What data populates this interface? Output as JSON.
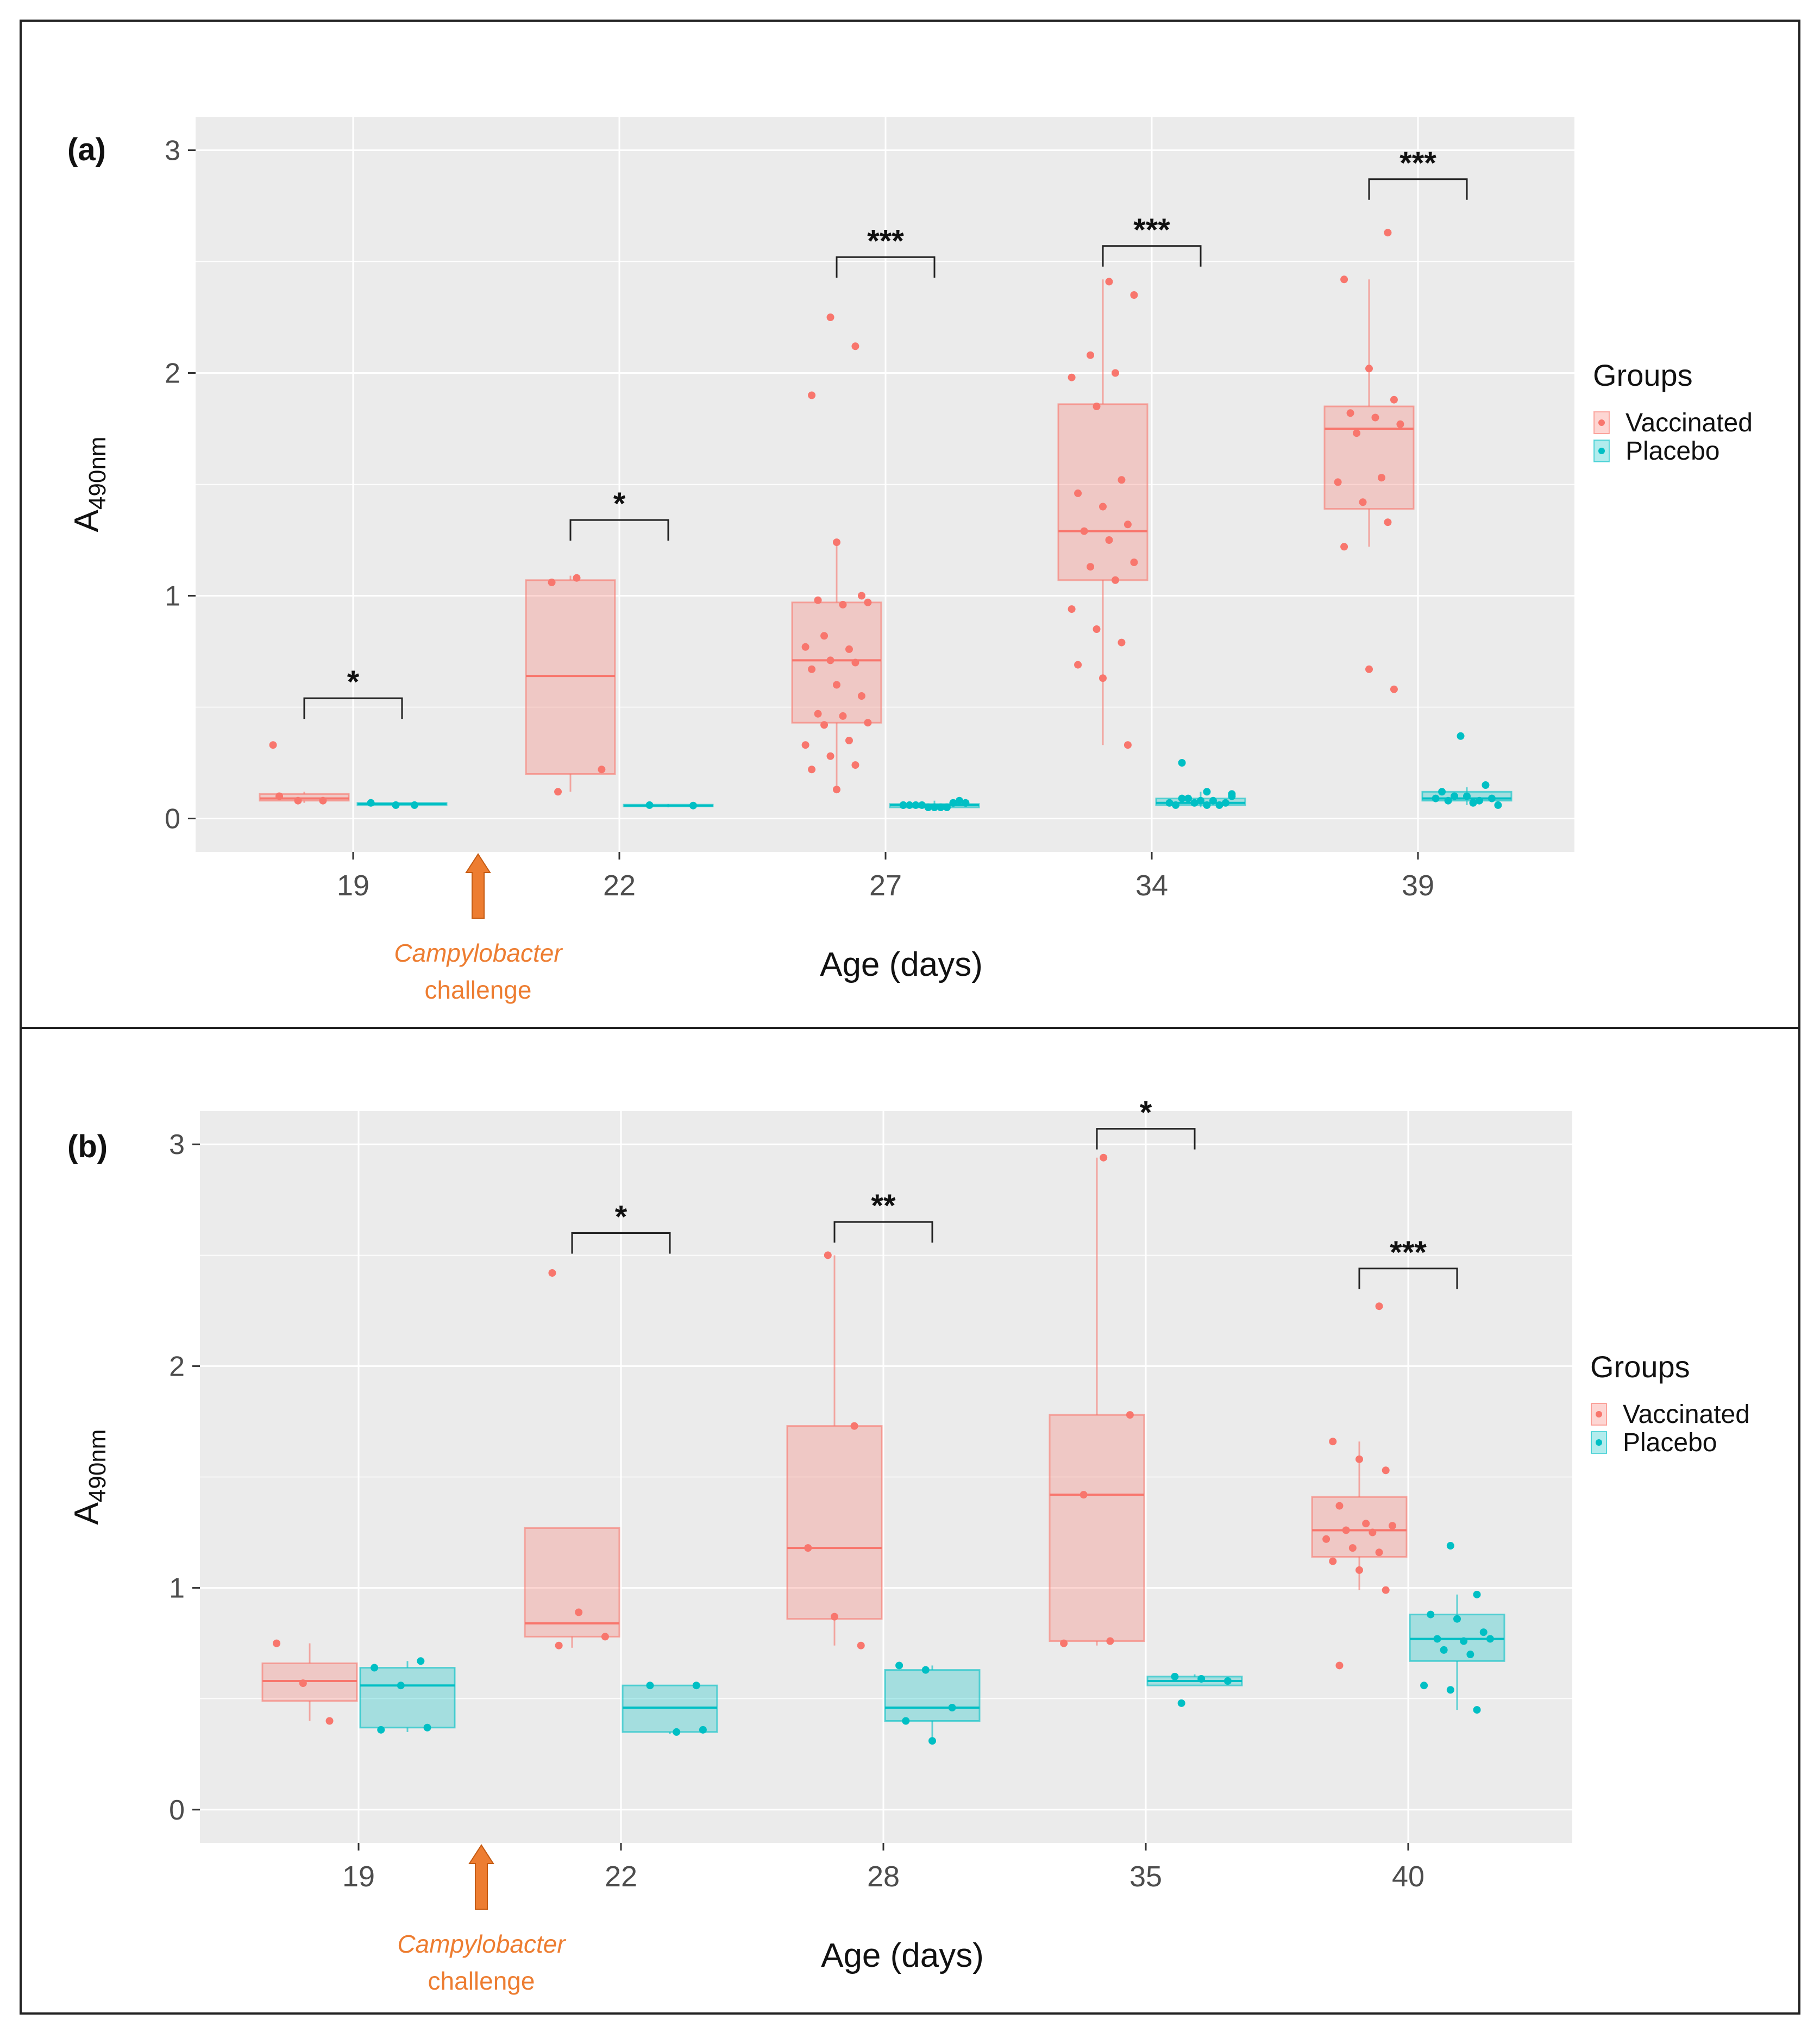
{
  "chart_data": [
    {
      "type": "boxplot",
      "panel_label": "(a)",
      "xlabel": "Age (days)",
      "ylabel_main": "A",
      "ylabel_sub": "490nm",
      "ylim": [
        -0.15,
        3.15
      ],
      "yticks": [
        0,
        1,
        2,
        3
      ],
      "categories": [
        "19",
        "22",
        "27",
        "34",
        "39"
      ],
      "legend": {
        "title": "Groups",
        "entries": [
          "Vaccinated",
          "Placebo"
        ],
        "position": "right"
      },
      "annotation": {
        "line1": "Campylobacter",
        "line2": "challenge",
        "between": [
          "19",
          "22"
        ]
      },
      "series": [
        {
          "name": "Vaccinated",
          "color": "#F8766D",
          "boxes": [
            {
              "category": "19",
              "q1": 0.08,
              "median": 0.09,
              "q3": 0.11,
              "whisker_low": 0.07,
              "whisker_high": 0.12,
              "points": [
                0.33,
                0.08,
                0.08,
                0.1
              ]
            },
            {
              "category": "22",
              "q1": 0.2,
              "median": 0.64,
              "q3": 1.07,
              "whisker_low": 0.12,
              "whisker_high": 1.09,
              "points": [
                1.06,
                1.08,
                0.22,
                0.12
              ]
            },
            {
              "category": "27",
              "q1": 0.43,
              "median": 0.71,
              "q3": 0.97,
              "whisker_low": 0.13,
              "whisker_high": 1.24,
              "points": [
                2.25,
                2.12,
                1.9,
                1.24,
                1.0,
                0.98,
                0.96,
                0.97,
                0.82,
                0.76,
                0.77,
                0.71,
                0.7,
                0.67,
                0.6,
                0.55,
                0.47,
                0.46,
                0.43,
                0.42,
                0.35,
                0.33,
                0.28,
                0.24,
                0.22,
                0.13
              ]
            },
            {
              "category": "34",
              "q1": 1.07,
              "median": 1.29,
              "q3": 1.86,
              "whisker_low": 0.33,
              "whisker_high": 2.42,
              "points": [
                2.41,
                2.35,
                2.08,
                2.0,
                1.98,
                1.85,
                1.52,
                1.46,
                1.4,
                1.32,
                1.29,
                1.25,
                1.15,
                1.13,
                1.07,
                0.94,
                0.85,
                0.79,
                0.69,
                0.63,
                0.33
              ]
            },
            {
              "category": "39",
              "q1": 1.39,
              "median": 1.75,
              "q3": 1.85,
              "whisker_low": 1.22,
              "whisker_high": 2.42,
              "points": [
                2.63,
                2.42,
                2.02,
                1.88,
                1.82,
                1.8,
                1.77,
                1.73,
                1.53,
                1.51,
                1.42,
                1.33,
                1.22,
                0.67,
                0.58
              ]
            }
          ]
        },
        {
          "name": "Placebo",
          "color": "#00BFC4",
          "boxes": [
            {
              "category": "19",
              "q1": 0.06,
              "median": 0.065,
              "q3": 0.07,
              "whisker_low": 0.06,
              "whisker_high": 0.07,
              "points": [
                0.06,
                0.07,
                0.06
              ]
            },
            {
              "category": "22",
              "q1": 0.055,
              "median": 0.058,
              "q3": 0.062,
              "whisker_low": 0.05,
              "whisker_high": 0.065,
              "points": [
                0.058,
                0.06
              ]
            },
            {
              "category": "27",
              "q1": 0.05,
              "median": 0.06,
              "q3": 0.065,
              "whisker_low": 0.05,
              "whisker_high": 0.08,
              "points": [
                0.06,
                0.05,
                0.07,
                0.06,
                0.05,
                0.08,
                0.06,
                0.05,
                0.07,
                0.06,
                0.05,
                0.06
              ]
            },
            {
              "category": "34",
              "q1": 0.06,
              "median": 0.07,
              "q3": 0.09,
              "whisker_low": 0.05,
              "whisker_high": 0.12,
              "points": [
                0.25,
                0.12,
                0.11,
                0.09,
                0.08,
                0.07,
                0.07,
                0.06,
                0.06,
                0.08,
                0.07,
                0.09,
                0.06,
                0.1
              ]
            },
            {
              "category": "39",
              "q1": 0.08,
              "median": 0.09,
              "q3": 0.12,
              "whisker_low": 0.06,
              "whisker_high": 0.14,
              "points": [
                0.37,
                0.15,
                0.12,
                0.1,
                0.09,
                0.08,
                0.07,
                0.06,
                0.1,
                0.08,
                0.09
              ]
            }
          ]
        }
      ],
      "significance": [
        {
          "category": "19",
          "label": "*",
          "y": 0.54
        },
        {
          "category": "22",
          "label": "*",
          "y": 1.34
        },
        {
          "category": "27",
          "label": "***",
          "y": 2.52
        },
        {
          "category": "34",
          "label": "***",
          "y": 2.57
        },
        {
          "category": "39",
          "label": "***",
          "y": 2.87
        }
      ]
    },
    {
      "type": "boxplot",
      "panel_label": "(b)",
      "xlabel": "Age (days)",
      "ylabel_main": "A",
      "ylabel_sub": "490nm",
      "ylim": [
        -0.15,
        3.15
      ],
      "yticks": [
        0,
        1,
        2,
        3
      ],
      "categories": [
        "19",
        "22",
        "28",
        "35",
        "40"
      ],
      "legend": {
        "title": "Groups",
        "entries": [
          "Vaccinated",
          "Placebo"
        ],
        "position": "right"
      },
      "annotation": {
        "line1": "Campylobacter",
        "line2": "challenge",
        "between": [
          "19",
          "22"
        ]
      },
      "series": [
        {
          "name": "Vaccinated",
          "color": "#F8766D",
          "boxes": [
            {
              "category": "19",
              "q1": 0.49,
              "median": 0.58,
              "q3": 0.66,
              "whisker_low": 0.4,
              "whisker_high": 0.75,
              "points": [
                0.75,
                0.57,
                0.4
              ]
            },
            {
              "category": "22",
              "q1": 0.78,
              "median": 0.84,
              "q3": 1.27,
              "whisker_low": 0.73,
              "whisker_high": 1.27,
              "points": [
                2.42,
                0.89,
                0.78,
                0.74
              ]
            },
            {
              "category": "28",
              "q1": 0.86,
              "median": 1.18,
              "q3": 1.73,
              "whisker_low": 0.74,
              "whisker_high": 2.5,
              "points": [
                2.5,
                1.73,
                1.18,
                0.87,
                0.74
              ]
            },
            {
              "category": "35",
              "q1": 0.76,
              "median": 1.42,
              "q3": 1.78,
              "whisker_low": 0.74,
              "whisker_high": 2.94,
              "points": [
                2.94,
                1.78,
                1.42,
                0.76,
                0.75
              ]
            },
            {
              "category": "40",
              "q1": 1.14,
              "median": 1.26,
              "q3": 1.41,
              "whisker_low": 0.99,
              "whisker_high": 1.66,
              "points": [
                2.27,
                1.66,
                1.58,
                1.53,
                1.37,
                1.29,
                1.28,
                1.26,
                1.25,
                1.22,
                1.18,
                1.16,
                1.12,
                1.08,
                0.99,
                0.65
              ]
            }
          ]
        },
        {
          "name": "Placebo",
          "color": "#00BFC4",
          "boxes": [
            {
              "category": "19",
              "q1": 0.37,
              "median": 0.56,
              "q3": 0.64,
              "whisker_low": 0.35,
              "whisker_high": 0.67,
              "points": [
                0.67,
                0.64,
                0.56,
                0.37,
                0.36
              ]
            },
            {
              "category": "22",
              "q1": 0.35,
              "median": 0.46,
              "q3": 0.56,
              "whisker_low": 0.34,
              "whisker_high": 0.56,
              "points": [
                0.56,
                0.56,
                0.35,
                0.36
              ]
            },
            {
              "category": "28",
              "q1": 0.4,
              "median": 0.46,
              "q3": 0.63,
              "whisker_low": 0.31,
              "whisker_high": 0.65,
              "points": [
                0.65,
                0.63,
                0.46,
                0.4,
                0.31
              ]
            },
            {
              "category": "35",
              "q1": 0.56,
              "median": 0.58,
              "q3": 0.6,
              "whisker_low": 0.56,
              "whisker_high": 0.61,
              "points": [
                0.6,
                0.59,
                0.58,
                0.48
              ]
            },
            {
              "category": "40",
              "q1": 0.67,
              "median": 0.77,
              "q3": 0.88,
              "whisker_low": 0.45,
              "whisker_high": 0.97,
              "points": [
                1.19,
                0.97,
                0.88,
                0.86,
                0.8,
                0.77,
                0.76,
                0.77,
                0.72,
                0.7,
                0.56,
                0.54,
                0.45
              ]
            }
          ]
        }
      ],
      "significance": [
        {
          "category": "22",
          "label": "*",
          "y": 2.6
        },
        {
          "category": "28",
          "label": "**",
          "y": 2.65
        },
        {
          "category": "35",
          "label": "*",
          "y": 3.07
        },
        {
          "category": "40",
          "label": "***",
          "y": 2.44
        }
      ]
    }
  ]
}
